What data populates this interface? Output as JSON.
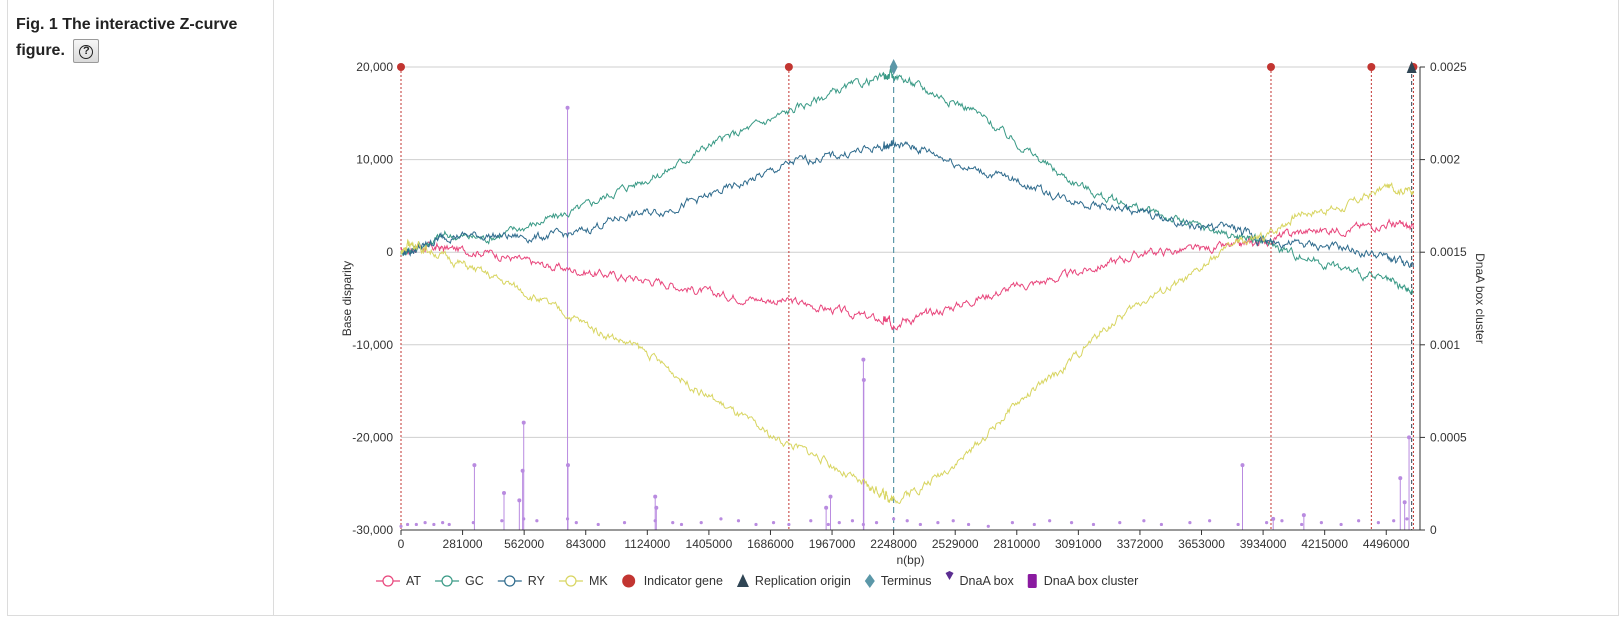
{
  "figure": {
    "title": "Fig. 1 The interactive Z-curve figure.",
    "help_label": "?"
  },
  "colors": {
    "AT": "#e8467c",
    "GC": "#3a9a86",
    "RY": "#2f6b8d",
    "MK": "#d8d561",
    "indicator": "#c23531",
    "terminus": "#5b97a8",
    "origin": "#2f4554",
    "dnaa_box": "#5b2d91",
    "dnaa_cluster": "#8a1aa0",
    "peaks": "#b98be0"
  },
  "chart_data": {
    "type": "line",
    "xlabel": "n(bp)",
    "ylabel": "Base disparity",
    "y2label": "DnaA box cluster",
    "xlim": [
      0,
      4650000
    ],
    "ylim": [
      -30000,
      20000
    ],
    "y2lim": [
      0,
      0.0025
    ],
    "x_ticks": [
      0,
      281000,
      562000,
      843000,
      1124000,
      1405000,
      1686000,
      1967000,
      2248000,
      2529000,
      2810000,
      3091000,
      3372000,
      3653000,
      3934000,
      4215000,
      4496000
    ],
    "y_ticks": [
      20000,
      10000,
      0,
      -10000,
      -20000,
      -30000
    ],
    "y_tick_labels": [
      "20,000",
      "10,000",
      "0",
      "-10,000",
      "-20,000",
      "-30,000"
    ],
    "y2_ticks": [
      0.0025,
      0.002,
      0.0015,
      0.001,
      0.0005,
      0
    ],
    "y2_tick_labels": [
      "0.0025",
      "0.002",
      "0.0015",
      "0.001",
      "0.0005",
      "0"
    ],
    "series": [
      {
        "name": "AT",
        "x": [
          0,
          80000,
          200000,
          400000,
          600000,
          800000,
          1000000,
          1200000,
          1400000,
          1600000,
          1800000,
          2000000,
          2200000,
          2248000,
          2400000,
          2600000,
          2800000,
          3000000,
          3200000,
          3400000,
          3600000,
          3800000,
          3934000,
          4100000,
          4300000,
          4500000,
          4620000
        ],
        "y": [
          0,
          600,
          400,
          0,
          -1200,
          -2000,
          -2600,
          -3300,
          -4400,
          -5000,
          -5400,
          -6400,
          -7400,
          -7600,
          -6800,
          -5200,
          -3800,
          -2800,
          -1400,
          0,
          200,
          600,
          1200,
          2200,
          2500,
          3100,
          2600
        ]
      },
      {
        "name": "GC",
        "x": [
          0,
          80000,
          200000,
          400000,
          600000,
          800000,
          1000000,
          1200000,
          1400000,
          1600000,
          1800000,
          2000000,
          2200000,
          2248000,
          2400000,
          2600000,
          2800000,
          3000000,
          3200000,
          3400000,
          3600000,
          3800000,
          3934000,
          4100000,
          4300000,
          4500000,
          4620000
        ],
        "y": [
          0,
          600,
          1800,
          1500,
          3000,
          4500,
          6800,
          8600,
          11500,
          13500,
          15500,
          17500,
          18900,
          19200,
          17500,
          15500,
          12000,
          8500,
          6000,
          4500,
          3000,
          1800,
          1200,
          -400,
          -1800,
          -3200,
          -4400
        ]
      },
      {
        "name": "RY",
        "x": [
          0,
          80000,
          200000,
          400000,
          600000,
          800000,
          1000000,
          1200000,
          1400000,
          1600000,
          1800000,
          2000000,
          2200000,
          2248000,
          2400000,
          2600000,
          2800000,
          3000000,
          3200000,
          3400000,
          3600000,
          3800000,
          3934000,
          4100000,
          4300000,
          4500000,
          4620000
        ],
        "y": [
          0,
          300,
          1800,
          1800,
          1600,
          2000,
          3800,
          4500,
          6000,
          7800,
          9800,
          10500,
          11400,
          11700,
          11000,
          9000,
          7800,
          6000,
          5000,
          4200,
          2800,
          2600,
          1200,
          800,
          400,
          -600,
          -1600
        ]
      },
      {
        "name": "MK",
        "x": [
          0,
          40000,
          120000,
          300000,
          500000,
          700000,
          900000,
          1100000,
          1300000,
          1500000,
          1700000,
          1900000,
          2100000,
          2200000,
          2248000,
          2400000,
          2600000,
          2800000,
          3000000,
          3200000,
          3400000,
          3600000,
          3800000,
          3934000,
          4100000,
          4300000,
          4500000,
          4620000
        ],
        "y": [
          0,
          1000,
          300,
          -1500,
          -3500,
          -6000,
          -8500,
          -10500,
          -14000,
          -17000,
          -20000,
          -22000,
          -25000,
          -26000,
          -26800,
          -25000,
          -21500,
          -16500,
          -13000,
          -8500,
          -5000,
          -2800,
          1000,
          1500,
          4300,
          4800,
          7100,
          6600
        ]
      }
    ],
    "indicator_genes_x": [
      0,
      1770000,
      3970000,
      4428000,
      4620000
    ],
    "terminus_x": 2248000,
    "replication_origin_x": 4612000,
    "dnaa_box_cluster": {
      "x": [
        0,
        30000,
        70000,
        110000,
        150000,
        190000,
        220000,
        330000,
        460000,
        560000,
        620000,
        760000,
        800000,
        900000,
        1020000,
        1160000,
        1240000,
        1280000,
        1370000,
        1460000,
        1540000,
        1620000,
        1700000,
        1770000,
        1870000,
        1950000,
        2000000,
        2060000,
        2110000,
        2170000,
        2248000,
        2310000,
        2370000,
        2450000,
        2520000,
        2590000,
        2680000,
        2790000,
        2890000,
        2960000,
        3060000,
        3160000,
        3280000,
        3390000,
        3470000,
        3600000,
        3690000,
        3820000,
        3950000,
        4020000,
        4110000,
        4200000,
        4290000,
        4370000,
        4460000,
        4530000,
        4590000
      ],
      "y": [
        2e-05,
        3e-05,
        3e-05,
        4e-05,
        3e-05,
        4e-05,
        3e-05,
        4e-05,
        5e-05,
        6e-05,
        5e-05,
        6e-05,
        4e-05,
        3e-05,
        4e-05,
        5e-05,
        4e-05,
        3e-05,
        4e-05,
        6e-05,
        5e-05,
        3e-05,
        4e-05,
        3e-05,
        5e-05,
        3e-05,
        4e-05,
        5e-05,
        3e-05,
        4e-05,
        6e-05,
        5e-05,
        3e-05,
        4e-05,
        5e-05,
        3e-05,
        2e-05,
        4e-05,
        3e-05,
        5e-05,
        4e-05,
        3e-05,
        4e-05,
        5e-05,
        3e-05,
        4e-05,
        5e-05,
        3e-05,
        4e-05,
        5e-05,
        3e-05,
        4e-05,
        3e-05,
        5e-05,
        4e-05,
        5e-05,
        6e-05
      ]
    },
    "dnaa_peaks": {
      "x": [
        335000,
        470000,
        540000,
        555000,
        560000,
        760000,
        762000,
        1160000,
        1165000,
        1940000,
        1960000,
        2110000,
        2112000,
        3840000,
        3980000,
        4120000,
        4560000,
        4580000,
        4600000
      ],
      "y": [
        0.00035,
        0.0002,
        0.00016,
        0.00032,
        0.00058,
        0.00228,
        0.00035,
        0.00018,
        0.00012,
        0.00012,
        0.00018,
        0.00092,
        0.00081,
        0.00035,
        6e-05,
        8e-05,
        0.00028,
        0.00015,
        0.0005
      ]
    },
    "legend": [
      {
        "label": "AT",
        "type": "line",
        "key": "AT"
      },
      {
        "label": "GC",
        "type": "line",
        "key": "GC"
      },
      {
        "label": "RY",
        "type": "line",
        "key": "RY"
      },
      {
        "label": "MK",
        "type": "line",
        "key": "MK"
      },
      {
        "label": "Indicator gene",
        "type": "circle",
        "key": "indicator"
      },
      {
        "label": "Replication origin",
        "type": "triangle",
        "key": "origin"
      },
      {
        "label": "Terminus",
        "type": "diamond",
        "key": "terminus"
      },
      {
        "label": "DnaA box",
        "type": "pin",
        "key": "dnaa_box"
      },
      {
        "label": "DnaA box cluster",
        "type": "rect",
        "key": "dnaa_cluster"
      }
    ],
    "legend_position": "bottom",
    "grid": true
  }
}
